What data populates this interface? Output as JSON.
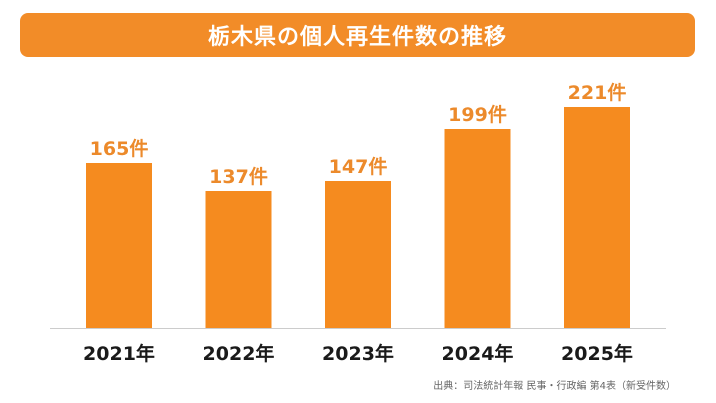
{
  "title": "栃木県の個人再生件数の推移",
  "source": "出典：司法統計年報 民事・行政編 第4表（新受件数）",
  "colors": {
    "accent": "#f28c28",
    "bar": "#f58b1f",
    "label": "#ec8a2b",
    "axis_text": "#1a1a1a",
    "baseline": "#cccccc"
  },
  "chart_data": {
    "type": "bar",
    "title": "栃木県の個人再生件数の推移",
    "categories": [
      "2021年",
      "2022年",
      "2023年",
      "2024年",
      "2025年"
    ],
    "values": [
      165,
      137,
      147,
      199,
      221
    ],
    "value_labels": [
      "165件",
      "137件",
      "147件",
      "199件",
      "221件"
    ],
    "unit": "件",
    "xlabel": "",
    "ylabel": "",
    "ylim": [
      0,
      250
    ],
    "grid": false,
    "legend": "none"
  }
}
